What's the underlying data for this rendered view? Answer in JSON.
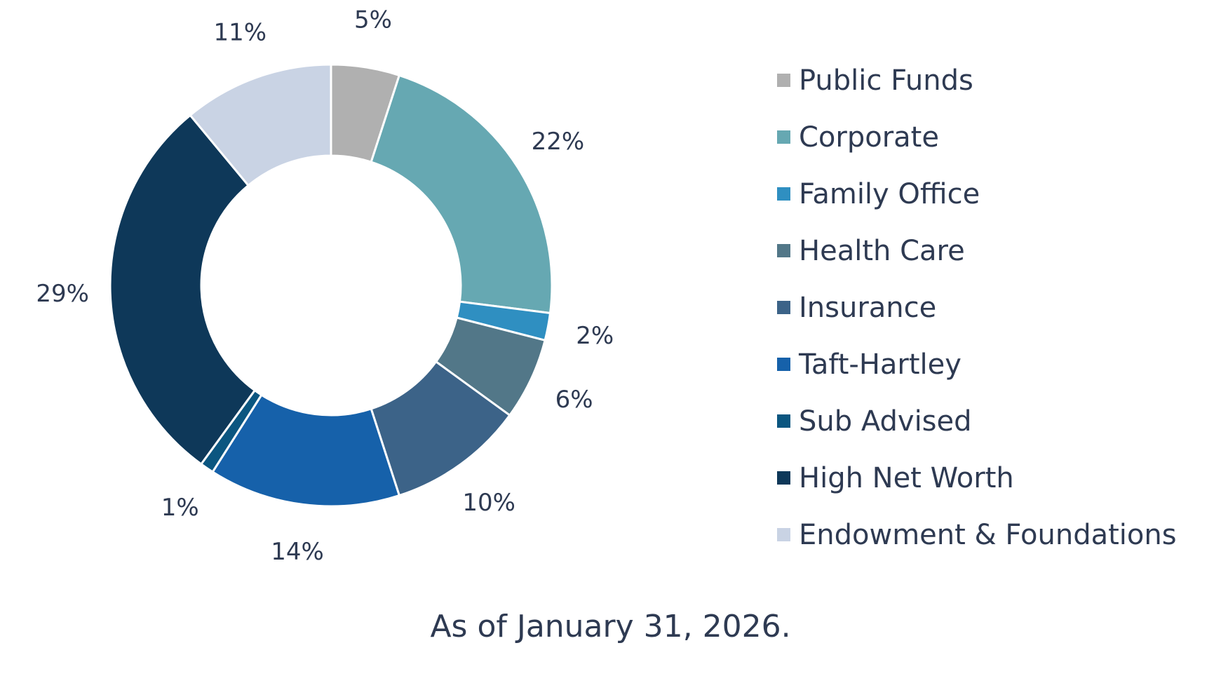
{
  "chart_data": {
    "type": "pie",
    "subtype": "donut",
    "categories": [
      "Public Funds",
      "Corporate",
      "Family Office",
      "Health Care",
      "Insurance",
      "Taft-Hartley",
      "Sub Advised",
      "High Net Worth",
      "Endowment & Foundations"
    ],
    "values": [
      5,
      22,
      2,
      6,
      10,
      14,
      1,
      29,
      11
    ],
    "labels": [
      "5%",
      "22%",
      "2%",
      "6%",
      "10%",
      "14%",
      "1%",
      "29%",
      "11%"
    ],
    "colors": [
      "#b0b0b0",
      "#66a8b2",
      "#2f8fc1",
      "#527788",
      "#3c6388",
      "#1661aa",
      "#0b5680",
      "#0e3859",
      "#c9d3e4"
    ],
    "legend_position": "right",
    "start": "top, clockwise"
  },
  "footnote": "As of January 31, 2026."
}
